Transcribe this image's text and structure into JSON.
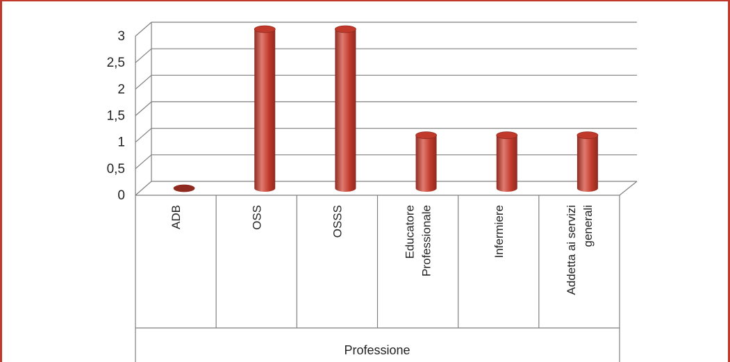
{
  "chart_data": {
    "type": "bar",
    "style": "3d-cylinder",
    "categories": [
      "ADB",
      "OSS",
      "OSSS",
      "Educatore Professionale",
      "Infermiere",
      "Addetta ai servizi generali"
    ],
    "category_lines": [
      [
        "ADB"
      ],
      [
        "OSS"
      ],
      [
        "OSSS"
      ],
      [
        "Educatore",
        "Professionale"
      ],
      [
        "Infermiere"
      ],
      [
        "Addetta ai servizi",
        "generali"
      ]
    ],
    "values": [
      0,
      3,
      3,
      1,
      1,
      1
    ],
    "yticks": [
      "0",
      "0,5",
      "1",
      "1,5",
      "2",
      "2,5",
      "3"
    ],
    "ylim": [
      0,
      3
    ],
    "xlabel": "Professione",
    "ylabel": "",
    "grid": true,
    "bar_color": "#c0392b",
    "bar_dark": "#8e2a20",
    "bar_light": "#e07b70",
    "frame_color": "#c0392b"
  }
}
